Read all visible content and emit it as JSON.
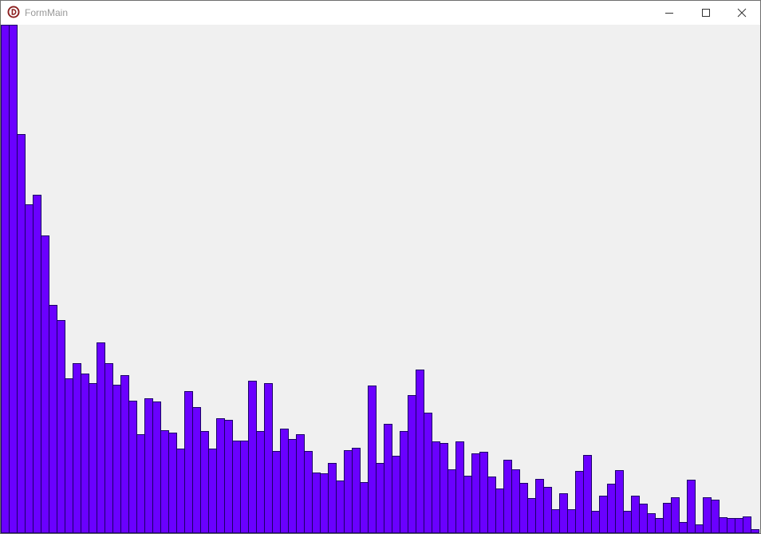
{
  "window": {
    "title": "FormMain",
    "icon": "delphi-app-icon",
    "controls": [
      "minimize-icon",
      "maximize-icon",
      "close-icon"
    ]
  },
  "colors": {
    "bar_fill": "#6a00ff",
    "bar_stroke": "#1a0066",
    "background": "#f0f0f0"
  },
  "chart_data": {
    "type": "bar",
    "values": [
      640,
      640,
      502,
      414,
      426,
      375,
      287,
      268,
      195,
      214,
      201,
      189,
      240,
      214,
      187,
      199,
      167,
      125,
      170,
      166,
      130,
      127,
      107,
      179,
      159,
      129,
      107,
      145,
      143,
      117,
      117,
      192,
      129,
      189,
      103,
      132,
      119,
      125,
      103,
      76,
      75,
      88,
      66,
      104,
      108,
      64,
      186,
      88,
      138,
      97,
      129,
      174,
      206,
      152,
      116,
      114,
      80,
      116,
      72,
      100,
      102,
      71,
      56,
      92,
      80,
      63,
      44,
      68,
      58,
      30,
      50,
      30,
      78,
      98,
      28,
      47,
      62,
      79,
      28,
      47,
      37,
      25,
      19,
      38,
      45,
      14,
      67,
      11,
      45,
      42,
      20,
      19,
      19,
      21,
      5
    ],
    "ylim": [
      0,
      640
    ]
  }
}
